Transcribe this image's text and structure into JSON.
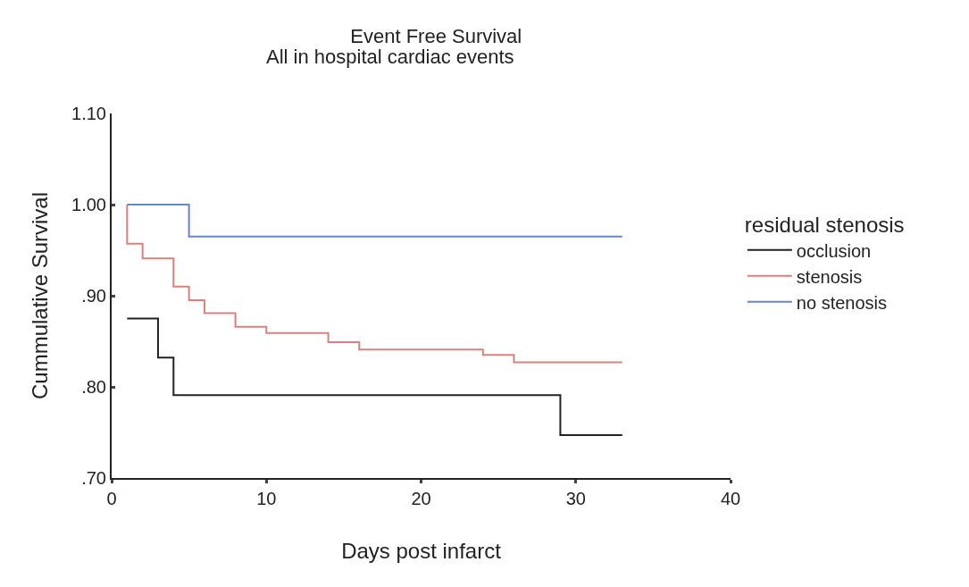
{
  "chart_data": {
    "type": "step",
    "title": "Event Free Survival",
    "subtitle": "All in hospital cardiac events",
    "xlabel": "Days post infarct",
    "ylabel": "Cummulative Survival",
    "legend_title": "residual stenosis",
    "xlim": [
      0,
      40
    ],
    "xticks": [
      0,
      10,
      20,
      30,
      40
    ],
    "ylim": [
      0.7,
      1.1
    ],
    "yticks": [
      {
        "value": 0.7,
        "label": ".70"
      },
      {
        "value": 0.8,
        "label": ".80"
      },
      {
        "value": 0.9,
        "label": ".90"
      },
      {
        "value": 1.0,
        "label": "1.00"
      },
      {
        "value": 1.1,
        "label": "1.10"
      }
    ],
    "grid": false,
    "legend": "right",
    "marker": "none",
    "line_style": "solid",
    "series": [
      {
        "name": "occlusion",
        "color": "#222222",
        "x": [
          1,
          3,
          4,
          29,
          33
        ],
        "values": [
          0.875,
          0.832,
          0.791,
          0.747,
          0.747
        ]
      },
      {
        "name": "stenosis",
        "color": "#d9817f",
        "x": [
          1,
          1,
          2,
          4,
          5,
          6,
          8,
          10,
          14,
          16,
          24,
          26,
          33
        ],
        "values": [
          1.0,
          0.957,
          0.941,
          0.91,
          0.895,
          0.881,
          0.866,
          0.859,
          0.849,
          0.841,
          0.835,
          0.827,
          0.827
        ]
      },
      {
        "name": "no stenosis",
        "color": "#6a85c4",
        "x": [
          1,
          5,
          33
        ],
        "values": [
          1.0,
          0.965,
          0.965
        ]
      }
    ]
  }
}
